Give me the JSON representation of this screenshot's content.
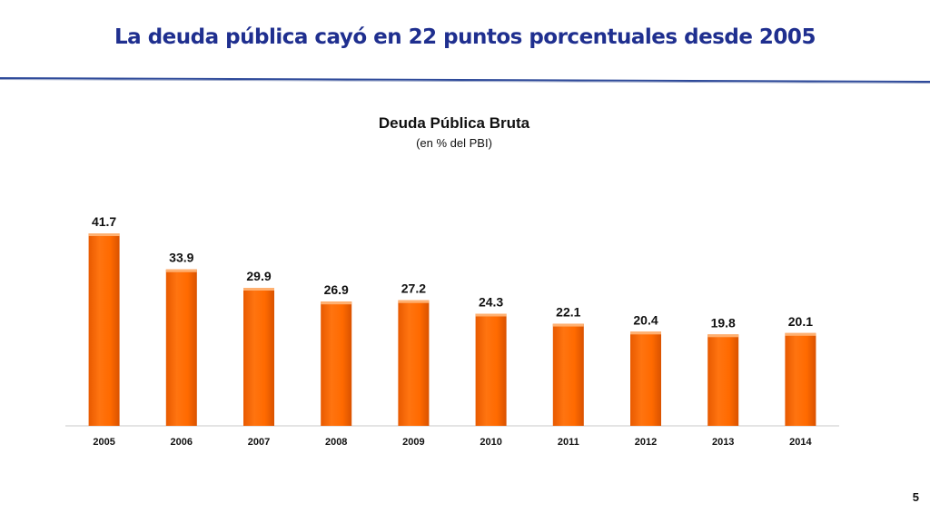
{
  "slide": {
    "title": "La deuda pública cayó en 22 puntos porcentuales desde 2005",
    "page_number": "5",
    "title_color": "#1f2f8f"
  },
  "chart_data": {
    "type": "bar",
    "title": "Deuda Pública Bruta",
    "subtitle": "(en % del PBI)",
    "xlabel": "",
    "ylabel": "",
    "categories": [
      "2005",
      "2006",
      "2007",
      "2008",
      "2009",
      "2010",
      "2011",
      "2012",
      "2013",
      "2014"
    ],
    "values": [
      41.7,
      33.9,
      29.9,
      26.9,
      27.2,
      24.3,
      22.1,
      20.4,
      19.8,
      20.1
    ],
    "data_labels": [
      "41.7",
      "33.9",
      "29.9",
      "26.9",
      "27.2",
      "24.3",
      "22.1",
      "20.4",
      "19.8",
      "20.1"
    ],
    "ylim": [
      0,
      41.7
    ],
    "grid": false,
    "legend": "none",
    "bar_color": "#ff6a00"
  }
}
